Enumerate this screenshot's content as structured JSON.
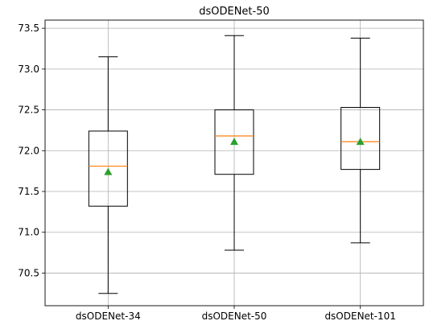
{
  "chart_data": {
    "type": "box",
    "title": "dsODENet-50",
    "xlabel": "",
    "ylabel": "",
    "categories": [
      "dsODENet-34",
      "dsODENet-50",
      "dsODENet-101"
    ],
    "boxes": [
      {
        "category": "dsODENet-34",
        "whisker_low": 70.25,
        "q1": 71.32,
        "median": 71.81,
        "q3": 72.24,
        "whisker_high": 73.15,
        "mean": 71.74
      },
      {
        "category": "dsODENet-50",
        "whisker_low": 70.78,
        "q1": 71.71,
        "median": 72.18,
        "q3": 72.5,
        "whisker_high": 73.41,
        "mean": 72.11
      },
      {
        "category": "dsODENet-101",
        "whisker_low": 70.87,
        "q1": 71.77,
        "median": 72.11,
        "q3": 72.53,
        "whisker_high": 73.38,
        "mean": 72.11
      }
    ],
    "yticks": [
      "70.5",
      "71.0",
      "71.5",
      "72.0",
      "72.5",
      "73.0",
      "73.5"
    ],
    "ylim": [
      70.1,
      73.6
    ],
    "grid": true,
    "colors": {
      "box": "#000000",
      "median": "#ff7f0e",
      "mean": "#2ca02c",
      "grid": "#b0b0b0"
    }
  }
}
